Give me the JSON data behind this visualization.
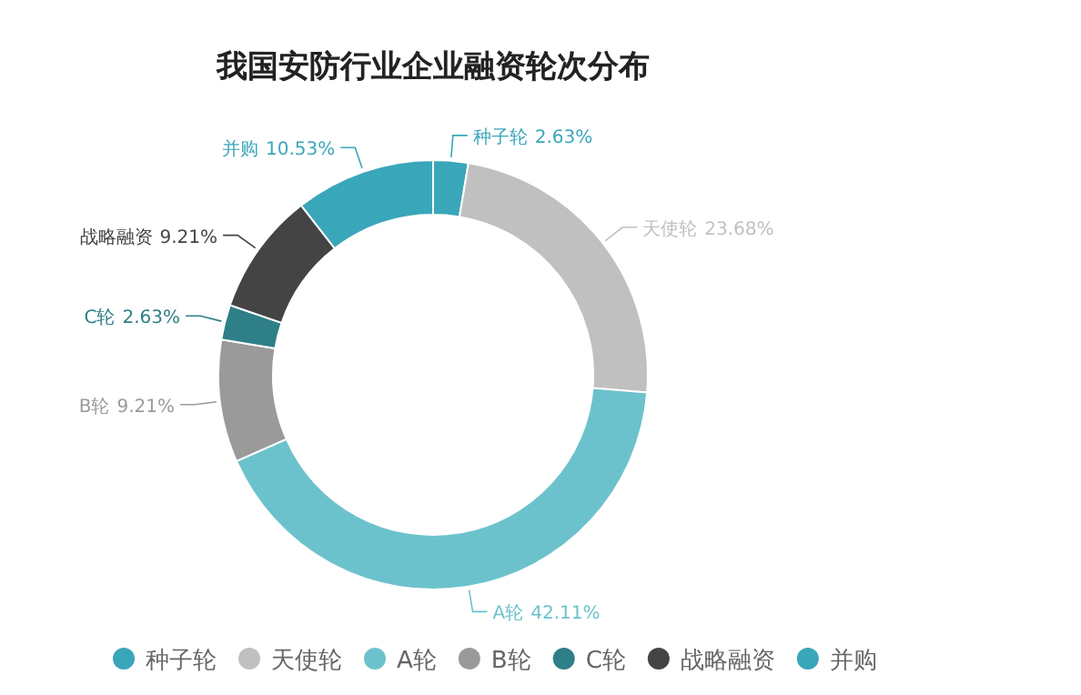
{
  "chart_data": {
    "type": "donut",
    "title": "我国安防行业企业融资轮次分布",
    "categories": [
      "种子轮",
      "天使轮",
      "A轮",
      "B轮",
      "C轮",
      "战略融资",
      "并购"
    ],
    "values": [
      2.63,
      23.68,
      42.11,
      9.21,
      2.63,
      9.21,
      10.53
    ],
    "colors": [
      "#3aa6b9",
      "#c0c0c0",
      "#6cc2cc",
      "#9a9a9a",
      "#2e7f87",
      "#444444",
      "#3aa6b9"
    ],
    "value_labels": [
      "2.63%",
      "23.68%",
      "42.11%",
      "9.21%",
      "2.63%",
      "9.21%",
      "10.53%"
    ],
    "legend": "bottom"
  }
}
